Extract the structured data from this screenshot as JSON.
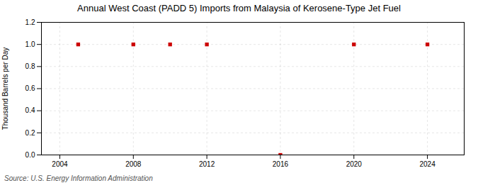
{
  "chart_data": {
    "type": "scatter",
    "title": "Annual West Coast (PADD 5) Imports from Malaysia of Kerosene-Type Jet Fuel",
    "ylabel": "Thousand Barrels per Day",
    "annotations": [
      "Source: U.S. Energy Information Administration"
    ],
    "x": [
      2005,
      2008,
      2010,
      2012,
      2016,
      2020,
      2024
    ],
    "values": [
      1.0,
      1.0,
      1.0,
      1.0,
      0.0,
      1.0,
      1.0
    ],
    "color": "#cc0000",
    "marker": "square",
    "xlim": [
      2003,
      2026
    ],
    "ylim": [
      0.0,
      1.2
    ],
    "xticks": [
      2004,
      2008,
      2012,
      2016,
      2020,
      2024
    ],
    "yticks": [
      {
        "value": 0.0,
        "label": "0.0"
      },
      0.2,
      0.4,
      0.6,
      0.8,
      {
        "value": 1.0,
        "label": "1.0"
      },
      1.2
    ],
    "grid": true
  }
}
